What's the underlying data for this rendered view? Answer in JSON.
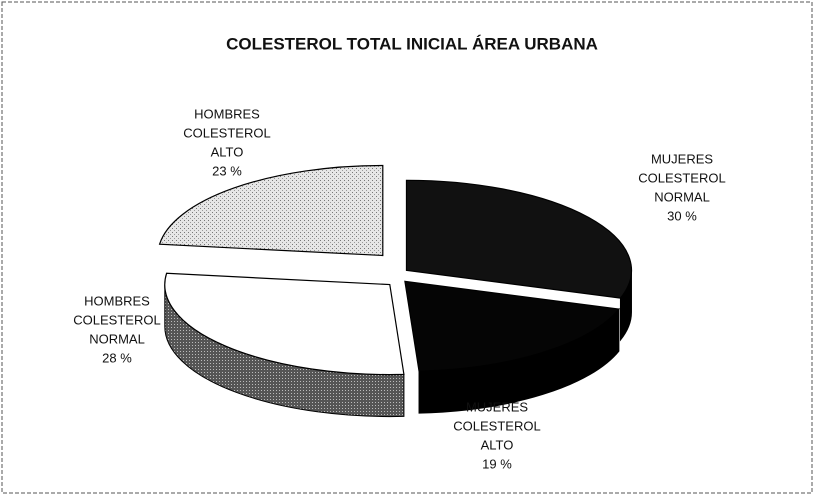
{
  "chart_data": {
    "type": "pie",
    "title": "COLESTEROL TOTAL INICIAL ÁREA URBANA",
    "categories": [
      [
        "MUJERES",
        "COLESTEROL",
        "NORMAL"
      ],
      [
        "MUJERES",
        "COLESTEROL",
        "ALTO"
      ],
      [
        "HOMBRES",
        "COLESTEROL",
        "NORMAL"
      ],
      [
        "HOMBRES",
        "COLESTEROL",
        "ALTO"
      ]
    ],
    "values": [
      30,
      19,
      28,
      23
    ],
    "value_labels": [
      "30 %",
      "19 %",
      "28 %",
      "23 %"
    ],
    "colors": [
      "#111111",
      "#050505",
      "#ffffff",
      "#d9d9d9"
    ]
  }
}
